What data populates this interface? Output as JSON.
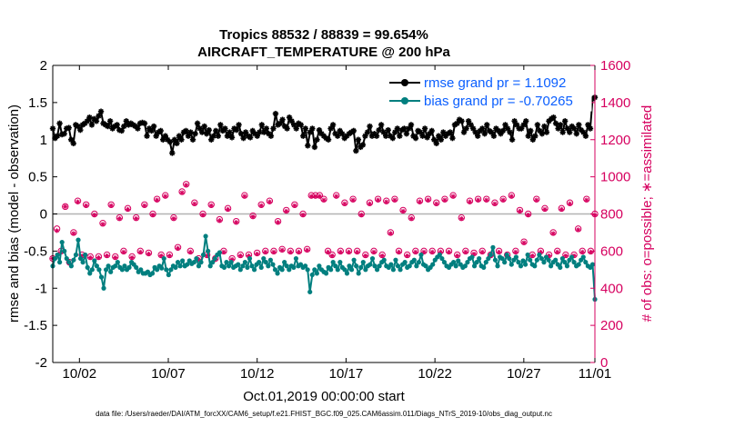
{
  "chart_data": {
    "type": "line",
    "title_line1": "Tropics 88532 / 88839 = 99.654%",
    "title_line2": "AIRCRAFT_TEMPERATURE @ 200 hPa",
    "xlabel": "Oct.01,2019 00:00:00 start",
    "ylabel_left": "rmse and bias (model - observation)",
    "ylabel_right": "# of obs: o=possible; ∗=assimilated",
    "ylim_left": [
      -2,
      2
    ],
    "ylim_right": [
      0,
      1600
    ],
    "xlim": [
      0.5,
      31.0
    ],
    "yticks_left": [
      2,
      1.5,
      1,
      0.5,
      0,
      -0.5,
      -1,
      -1.5,
      -2
    ],
    "ytick_labels_left": [
      "2",
      "1.5",
      "1",
      "0.5",
      "0",
      "-0.5",
      "-1",
      "-1.5",
      "-2"
    ],
    "yticks_right": [
      1600,
      1400,
      1200,
      1000,
      800,
      600,
      400,
      200,
      0
    ],
    "ytick_labels_right": [
      "1600",
      "1400",
      "1200",
      "1000",
      "800",
      "600",
      "400",
      "200",
      "0"
    ],
    "xticks": [
      2,
      7,
      12,
      17,
      22,
      27,
      32
    ],
    "xtick_labels": [
      "10/02",
      "10/07",
      "10/12",
      "10/17",
      "10/22",
      "10/27",
      "11/01"
    ],
    "legend_position": "top-right",
    "colors": {
      "rmse": "#000000",
      "bias": "#007f7f",
      "counts": "#d6005f",
      "zero_line": "#b3b3b3",
      "legend_text": "#0b5fff"
    },
    "series": [
      {
        "name": "rmse grand pr = 1.1092",
        "axis": "left",
        "values": [
          1.15,
          1.02,
          1.05,
          1.22,
          1.07,
          1.08,
          1.15,
          1.16,
          1.0,
          0.95,
          1.2,
          1.18,
          1.13,
          1.2,
          1.22,
          1.25,
          1.3,
          1.2,
          1.28,
          1.25,
          1.32,
          1.38,
          1.22,
          1.2,
          1.18,
          1.25,
          1.15,
          1.18,
          1.2,
          1.13,
          1.12,
          1.18,
          1.25,
          1.2,
          1.22,
          1.2,
          1.18,
          1.15,
          1.22,
          1.23,
          1.22,
          1.05,
          1.15,
          1.12,
          1.18,
          1.05,
          1.1,
          1.12,
          1.0,
          1.05,
          1.0,
          0.97,
          0.82,
          1.0,
          0.95,
          1.05,
          1.0,
          1.1,
          1.12,
          1.05,
          1.1,
          1.0,
          1.08,
          1.22,
          1.15,
          1.1,
          1.18,
          1.08,
          1.13,
          1.0,
          1.05,
          1.12,
          1.05,
          1.2,
          1.12,
          1.15,
          1.05,
          1.1,
          1.03,
          1.15,
          1.13,
          1.2,
          1.08,
          1.02,
          1.1,
          1.05,
          1.03,
          1.12,
          1.08,
          1.05,
          1.1,
          1.2,
          1.1,
          1.15,
          1.08,
          1.05,
          1.15,
          1.35,
          1.2,
          1.22,
          1.27,
          1.18,
          1.15,
          1.3,
          1.25,
          1.2,
          1.15,
          1.22,
          1.2,
          1.05,
          1.15,
          0.92,
          1.1,
          1.15,
          0.9,
          1.0,
          1.13,
          1.08,
          1.05,
          1.02,
          1.0,
          1.15,
          1.2,
          1.08,
          1.05,
          1.12,
          1.08,
          1.02,
          1.05,
          1.08,
          1.1,
          1.12,
          0.85,
          1.0,
          0.9,
          0.93,
          1.05,
          1.1,
          1.18,
          1.05,
          1.08,
          1.05,
          1.13,
          1.2,
          1.1,
          1.05,
          1.13,
          1.05,
          1.02,
          1.1,
          1.15,
          1.05,
          1.13,
          1.15,
          1.08,
          1.15,
          1.2,
          1.05,
          1.02,
          1.12,
          1.1,
          1.05,
          1.15,
          1.03,
          1.08,
          1.12,
          1.0,
          0.95,
          1.05,
          1.0,
          1.1,
          1.05,
          1.08,
          1.1,
          1.02,
          1.2,
          1.22,
          1.27,
          1.25,
          1.1,
          1.15,
          1.25,
          1.2,
          1.15,
          1.1,
          1.05,
          1.12,
          1.15,
          1.08,
          1.2,
          1.12,
          1.1,
          1.05,
          1.15,
          1.12,
          1.08,
          1.12,
          1.2,
          1.15,
          1.1,
          1.0,
          1.25,
          1.2,
          1.15,
          1.15,
          1.2,
          1.25,
          1.05,
          1.12,
          1.0,
          1.05,
          1.2,
          1.12,
          1.08,
          1.18,
          1.1,
          1.25,
          1.28,
          1.3,
          1.22,
          1.15,
          1.2,
          1.1,
          1.25,
          1.15,
          1.1,
          1.18,
          1.15,
          1.08,
          1.2,
          1.13,
          1.1,
          1.05,
          1.2,
          1.15,
          1.55,
          1.57
        ]
      },
      {
        "name": "bias grand pr = -0.70265",
        "axis": "left",
        "values": [
          -0.7,
          -0.6,
          -0.55,
          -0.65,
          -0.38,
          -0.5,
          -0.6,
          -0.65,
          -0.7,
          -0.62,
          -0.55,
          -0.35,
          -0.6,
          -0.65,
          -0.55,
          -0.72,
          -0.8,
          -0.75,
          -0.63,
          -0.7,
          -0.75,
          -0.85,
          -1.0,
          -0.75,
          -0.7,
          -0.78,
          -0.72,
          -0.7,
          -0.65,
          -0.72,
          -0.75,
          -0.7,
          -0.75,
          -0.72,
          -0.65,
          -0.68,
          -0.72,
          -0.78,
          -0.75,
          -0.8,
          -0.8,
          -0.78,
          -0.82,
          -0.8,
          -0.72,
          -0.75,
          -0.7,
          -0.73,
          -0.6,
          -0.75,
          -0.82,
          -0.75,
          -0.7,
          -0.72,
          -0.65,
          -0.7,
          -0.63,
          -0.7,
          -0.68,
          -0.63,
          -0.67,
          -0.65,
          -0.6,
          -0.7,
          -0.65,
          -0.55,
          -0.3,
          -0.5,
          -0.7,
          -0.65,
          -0.6,
          -0.55,
          -0.52,
          -0.7,
          -0.72,
          -0.65,
          -0.7,
          -0.65,
          -0.72,
          -0.7,
          -0.68,
          -0.75,
          -0.7,
          -0.65,
          -0.72,
          -0.6,
          -0.7,
          -0.75,
          -0.68,
          -0.65,
          -0.72,
          -0.6,
          -0.65,
          -0.7,
          -0.62,
          -0.68,
          -0.75,
          -0.8,
          -0.72,
          -0.75,
          -0.65,
          -0.7,
          -0.75,
          -0.7,
          -0.72,
          -0.6,
          -0.7,
          -0.68,
          -0.72,
          -0.7,
          -0.75,
          -1.05,
          -0.82,
          -0.75,
          -0.8,
          -0.7,
          -0.75,
          -0.78,
          -0.8,
          -0.72,
          -0.75,
          -0.65,
          -0.7,
          -0.75,
          -0.65,
          -0.72,
          -0.75,
          -0.8,
          -0.7,
          -0.75,
          -0.62,
          -0.7,
          -0.8,
          -0.72,
          -0.65,
          -0.75,
          -0.7,
          -0.68,
          -0.6,
          -0.7,
          -0.75,
          -0.7,
          -0.65,
          -0.62,
          -0.7,
          -0.72,
          -0.68,
          -0.75,
          -0.62,
          -0.7,
          -0.75,
          -0.68,
          -0.65,
          -0.72,
          -0.7,
          -0.65,
          -0.62,
          -0.7,
          -0.65,
          -0.55,
          -0.68,
          -0.7,
          -0.75,
          -0.72,
          -0.68,
          -0.62,
          -0.58,
          -0.55,
          -0.6,
          -0.65,
          -0.7,
          -0.72,
          -0.68,
          -0.65,
          -0.7,
          -0.63,
          -0.68,
          -0.72,
          -0.7,
          -0.65,
          -0.6,
          -0.58,
          -0.7,
          -0.65,
          -0.6,
          -0.7,
          -0.72,
          -0.65,
          -0.6,
          -0.55,
          -0.45,
          -0.62,
          -0.7,
          -0.58,
          -0.6,
          -0.65,
          -0.55,
          -0.6,
          -0.68,
          -0.62,
          -0.58,
          -0.65,
          -0.7,
          -0.63,
          -0.68,
          -0.55,
          -0.62,
          -0.68,
          -0.7,
          -0.62,
          -0.55,
          -0.6,
          -0.65,
          -0.58,
          -0.62,
          -0.7,
          -0.65,
          -0.62,
          -0.68,
          -0.72,
          -0.6,
          -0.65,
          -0.7,
          -0.62,
          -0.58,
          -0.65,
          -0.7,
          -0.68,
          -0.62,
          -0.58,
          -0.65,
          -0.7,
          -0.72,
          -0.68,
          -1.15
        ]
      },
      {
        "name": "possible observations",
        "axis": "right",
        "marker": "o",
        "values": [
          560,
          720,
          600,
          840,
          540,
          700,
          870,
          580,
          850,
          570,
          800,
          570,
          750,
          580,
          850,
          570,
          780,
          600,
          830,
          570,
          780,
          600,
          850,
          590,
          800,
          880,
          580,
          900,
          580,
          780,
          620,
          920,
          960,
          600,
          860,
          560,
          800,
          580,
          850,
          560,
          770,
          600,
          830,
          560,
          760,
          580,
          900,
          580,
          790,
          590,
          850,
          600,
          870,
          600,
          760,
          610,
          820,
          600,
          850,
          600,
          800,
          610,
          900,
          900,
          900,
          880,
          600,
          580,
          900,
          600,
          860,
          600,
          880,
          600,
          800,
          580,
          860,
          600,
          880,
          580,
          870,
          700,
          880,
          600,
          820,
          580,
          780,
          600,
          870,
          600,
          880,
          600,
          860,
          600,
          880,
          600,
          900,
          580,
          780,
          600,
          870,
          590,
          880,
          600,
          880,
          580,
          860,
          600,
          880,
          580,
          900,
          600,
          820,
          650,
          800,
          580,
          880,
          600,
          830,
          580,
          700,
          600,
          830,
          580,
          860,
          580,
          720,
          600,
          880,
          600,
          800
        ]
      },
      {
        "name": "assimilated observations",
        "axis": "right",
        "marker": "*",
        "values": [
          560,
          710,
          595,
          840,
          535,
          695,
          865,
          575,
          845,
          565,
          795,
          565,
          745,
          575,
          845,
          565,
          775,
          595,
          825,
          565,
          775,
          595,
          845,
          585,
          795,
          875,
          575,
          895,
          575,
          775,
          615,
          915,
          955,
          595,
          855,
          555,
          795,
          575,
          845,
          555,
          765,
          595,
          825,
          555,
          755,
          575,
          895,
          575,
          785,
          585,
          845,
          595,
          865,
          595,
          755,
          605,
          815,
          595,
          845,
          595,
          795,
          605,
          895,
          895,
          895,
          875,
          595,
          575,
          895,
          595,
          855,
          595,
          875,
          595,
          795,
          575,
          855,
          595,
          875,
          575,
          865,
          695,
          875,
          595,
          815,
          575,
          775,
          595,
          865,
          595,
          875,
          595,
          855,
          595,
          875,
          595,
          895,
          575,
          775,
          595,
          865,
          585,
          875,
          595,
          875,
          575,
          855,
          595,
          875,
          575,
          895,
          595,
          815,
          645,
          795,
          575,
          875,
          595,
          825,
          575,
          695,
          595,
          825,
          575,
          855,
          575,
          715,
          595,
          875,
          595,
          795
        ]
      }
    ]
  },
  "footer": {
    "data_file": "data file: /Users/raeder/DAI/ATM_forcXX/CAM6_setup/f.e21.FHIST_BGC.f09_025.CAM6assim.011/Diags_NTrS_2019-10/obs_diag_output.nc"
  }
}
